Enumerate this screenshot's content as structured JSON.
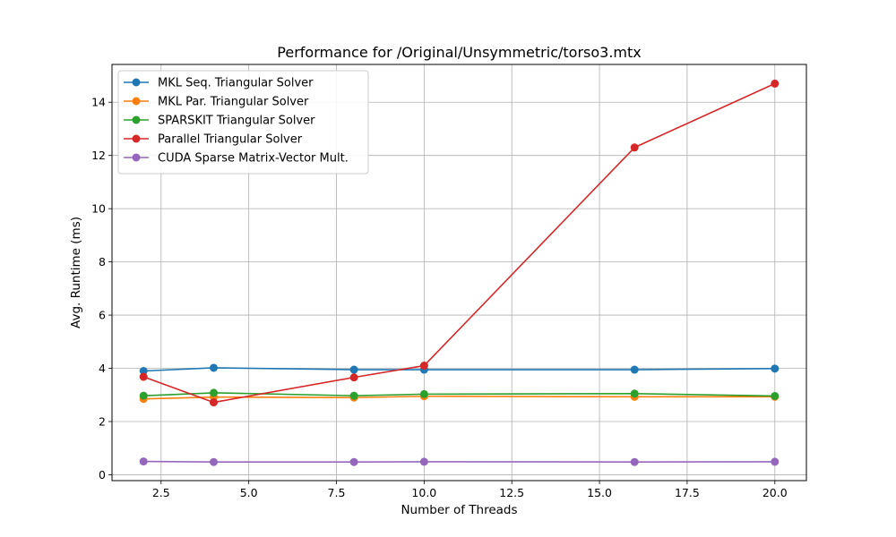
{
  "chart_data": {
    "type": "line",
    "title": "Performance for /Original/Unsymmetric/torso3.mtx",
    "xlabel": "Number of Threads",
    "ylabel": "Avg. Runtime (ms)",
    "x": [
      2,
      4,
      8,
      10,
      16,
      20
    ],
    "xlim": [
      1.1,
      20.9
    ],
    "ylim": [
      -0.22,
      15.42
    ],
    "xticks": [
      2.5,
      5.0,
      7.5,
      10.0,
      12.5,
      15.0,
      17.5,
      20.0
    ],
    "xtick_labels": [
      "2.5",
      "5.0",
      "7.5",
      "10.0",
      "12.5",
      "15.0",
      "17.5",
      "20.0"
    ],
    "yticks": [
      0,
      2,
      4,
      6,
      8,
      10,
      12,
      14
    ],
    "ytick_labels": [
      "0",
      "2",
      "4",
      "6",
      "8",
      "10",
      "12",
      "14"
    ],
    "grid": true,
    "legend_position": "top-left",
    "series": [
      {
        "name": "MKL Seq. Triangular Solver",
        "color": "#1f77b4",
        "values": [
          3.9,
          4.02,
          3.95,
          3.95,
          3.95,
          3.99
        ]
      },
      {
        "name": "MKL Par. Triangular Solver",
        "color": "#ff7f0e",
        "values": [
          2.85,
          2.92,
          2.9,
          2.95,
          2.93,
          2.93
        ]
      },
      {
        "name": "SPARSKIT Triangular Solver",
        "color": "#2ca02c",
        "values": [
          2.97,
          3.08,
          2.97,
          3.03,
          3.05,
          2.96
        ]
      },
      {
        "name": "Parallel Triangular Solver",
        "color": "#d62728",
        "values": [
          3.68,
          2.72,
          3.66,
          4.1,
          12.3,
          14.7
        ]
      },
      {
        "name": "CUDA Sparse Matrix-Vector Mult.",
        "color": "#9467bd",
        "values": [
          0.5,
          0.48,
          0.48,
          0.49,
          0.48,
          0.49
        ]
      }
    ]
  }
}
